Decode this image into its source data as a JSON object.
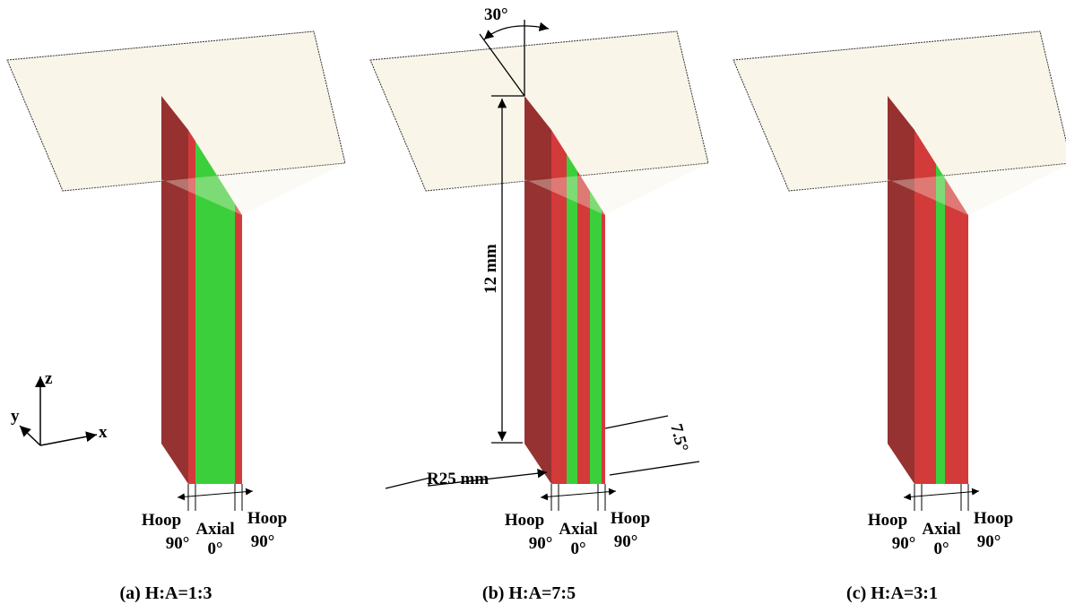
{
  "axes": {
    "z": "z",
    "y": "y",
    "x": "x"
  },
  "panels": [
    {
      "caption": "(a) H:A=1:3",
      "labels": [
        {
          "name": "Hoop",
          "angle": "90°"
        },
        {
          "name": "Axial",
          "angle": "0°"
        },
        {
          "name": "Hoop",
          "angle": "90°"
        }
      ]
    },
    {
      "caption": "(b) H:A=7:5",
      "labels": [
        {
          "name": "Hoop",
          "angle": "90°"
        },
        {
          "name": "Axial",
          "angle": "0°"
        },
        {
          "name": "Hoop",
          "angle": "90°"
        }
      ]
    },
    {
      "caption": "(c) H:A=3:1",
      "labels": [
        {
          "name": "Hoop",
          "angle": "90°"
        },
        {
          "name": "Axial",
          "angle": "0°"
        },
        {
          "name": "Hoop",
          "angle": "90°"
        }
      ]
    }
  ],
  "dimensions": {
    "angle": "30°",
    "height": "12 mm",
    "tilt": "7.5°",
    "radius": "R25 mm"
  }
}
